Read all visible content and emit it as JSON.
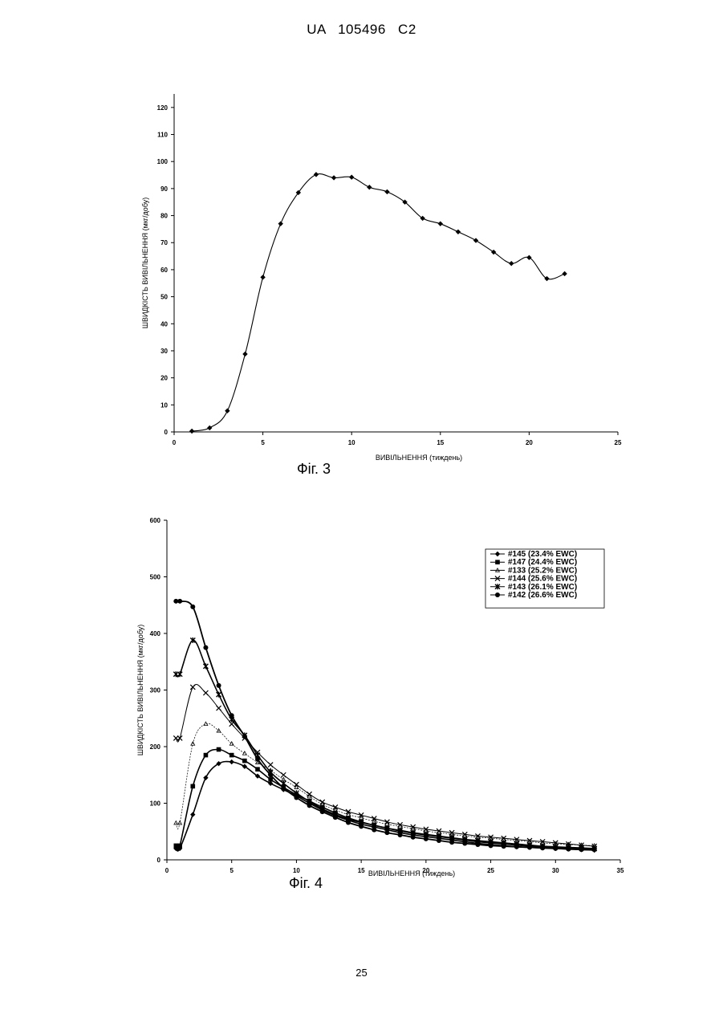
{
  "header": {
    "text": "UA   105496   C2"
  },
  "page_number": "25",
  "chart_data": [
    {
      "type": "line",
      "figure_label": "Фіг. 3",
      "title": "",
      "xlabel": "ВИВІЛЬНЕННЯ (тиждень)",
      "ylabel": "ШВИДКІСТЬ ВИВІЛЬНЕННЯ (мкг/добу)",
      "xlim": [
        0,
        25
      ],
      "ylim": [
        0,
        125
      ],
      "xticks": [
        0,
        5,
        10,
        15,
        20,
        25
      ],
      "yticks": [
        0,
        10,
        20,
        30,
        40,
        50,
        60,
        70,
        80,
        90,
        100,
        110,
        120
      ],
      "grid": false,
      "series": [
        {
          "marker": "diamond",
          "x": [
            1,
            2,
            3,
            4,
            5,
            6,
            7,
            8,
            9,
            10,
            11,
            12,
            13,
            14,
            15,
            16,
            17,
            18,
            19,
            20,
            21,
            22
          ],
          "y": [
            0.3,
            1.5,
            7.8,
            28.8,
            57.2,
            77,
            88.5,
            95.2,
            94,
            94.2,
            90.5,
            88.8,
            85,
            79,
            77,
            74,
            70.8,
            66.5,
            62.3,
            64.5,
            56.7,
            58.5
          ]
        }
      ]
    },
    {
      "type": "line",
      "figure_label": "Фіг. 4",
      "title": "",
      "xlabel": "ВИВІЛЬНЕННЯ (тиждень)",
      "ylabel": "ШВИДКІСТЬ ВИВІЛЬНЕННЯ (мкг/добу)",
      "xlim": [
        0,
        35
      ],
      "ylim": [
        0,
        600
      ],
      "xticks": [
        0,
        5,
        10,
        15,
        20,
        25,
        30,
        35
      ],
      "yticks": [
        0,
        100,
        200,
        300,
        400,
        500,
        600
      ],
      "grid": false,
      "legend_position": "top-right",
      "x": [
        0.7,
        1,
        2,
        3,
        4,
        5,
        6,
        7,
        8,
        9,
        10,
        11,
        12,
        13,
        14,
        15,
        16,
        17,
        18,
        19,
        20,
        21,
        22,
        23,
        24,
        25,
        26,
        27,
        28,
        29,
        30,
        31,
        32,
        33
      ],
      "series": [
        {
          "name": "#145 (23.4% EWC)",
          "marker": "diamond",
          "values": [
            20,
            20,
            80,
            145,
            170,
            173,
            165,
            148,
            135,
            124,
            113,
            100,
            88,
            78,
            70,
            63,
            58,
            53,
            48,
            44,
            41,
            38,
            35,
            32,
            29,
            27,
            25,
            23,
            22,
            21,
            20,
            19,
            18,
            17
          ]
        },
        {
          "name": "#147 (24.4% EWC)",
          "marker": "square",
          "values": [
            25,
            25,
            130,
            185,
            195,
            185,
            175,
            160,
            142,
            128,
            115,
            104,
            93,
            83,
            74,
            67,
            61,
            56,
            51,
            47,
            44,
            41,
            38,
            35,
            32,
            30,
            28,
            26,
            24,
            23,
            22,
            21,
            20,
            19
          ]
        },
        {
          "name": "#133 (25.2% EWC)",
          "marker": "triangle",
          "values": [
            65,
            65,
            205,
            240,
            228,
            205,
            188,
            172,
            158,
            142,
            128,
            112,
            98,
            88,
            80,
            74,
            68,
            63,
            59,
            55,
            51,
            48,
            45,
            42,
            40,
            38,
            36,
            34,
            32,
            30,
            28,
            27,
            26,
            25
          ]
        },
        {
          "name": "#144 (25.6% EWC)",
          "marker": "x",
          "values": [
            215,
            215,
            305,
            295,
            268,
            240,
            215,
            190,
            168,
            150,
            133,
            116,
            102,
            93,
            85,
            79,
            73,
            67,
            62,
            58,
            54,
            51,
            48,
            45,
            42,
            40,
            38,
            36,
            34,
            32,
            30,
            28,
            26,
            24
          ]
        },
        {
          "name": "#143 (26.1% EWC)",
          "marker": "star",
          "values": [
            328,
            328,
            388,
            342,
            292,
            248,
            220,
            185,
            155,
            135,
            118,
            103,
            90,
            80,
            72,
            66,
            61,
            56,
            52,
            48,
            45,
            42,
            39,
            36,
            34,
            32,
            30,
            28,
            26,
            24,
            23,
            22,
            21,
            20
          ]
        },
        {
          "name": "#142 (26.6% EWC)",
          "marker": "circle",
          "values": [
            457,
            457,
            447,
            375,
            308,
            255,
            218,
            178,
            150,
            127,
            110,
            96,
            85,
            75,
            66,
            59,
            53,
            48,
            44,
            40,
            37,
            34,
            31,
            29,
            27,
            25,
            24,
            23,
            22,
            21,
            20,
            19,
            18,
            18
          ]
        }
      ]
    }
  ]
}
